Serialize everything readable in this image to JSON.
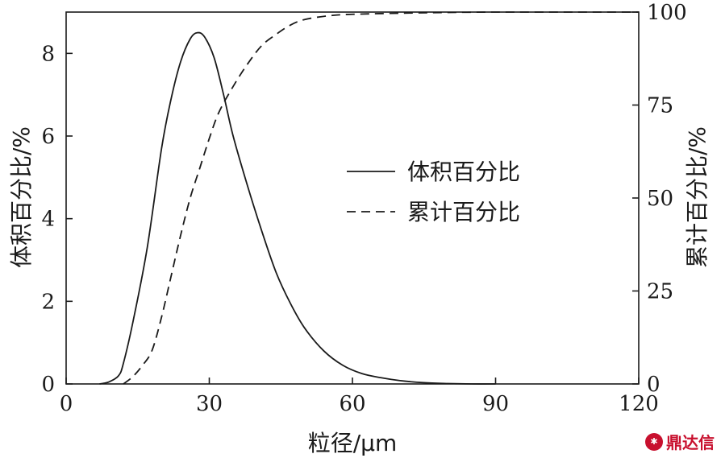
{
  "chart_data": {
    "type": "line",
    "title": "",
    "xlabel": "粒径/μm",
    "ylabel_left": "体积百分比/%",
    "ylabel_right": "累计百分比/%",
    "xlim": [
      0,
      120
    ],
    "ylim_left": [
      0,
      9
    ],
    "ylim_right": [
      0,
      100
    ],
    "x_ticks": [
      0,
      30,
      60,
      90,
      120
    ],
    "y_left_ticks": [
      0,
      2,
      4,
      6,
      8
    ],
    "y_right_ticks": [
      0,
      25,
      50,
      75,
      100
    ],
    "grid": false,
    "legend_position": "center-right",
    "series": [
      {
        "name": "体积百分比",
        "axis": "left",
        "style": "solid",
        "x": [
          7,
          9,
          11,
          12,
          14,
          17,
          20,
          22,
          24,
          26,
          27.5,
          29,
          31,
          33,
          35,
          38,
          41,
          44,
          47,
          50,
          54,
          58,
          62,
          66,
          70,
          75,
          80,
          85,
          90
        ],
        "y": [
          0,
          0.05,
          0.2,
          0.5,
          1.5,
          3.3,
          5.7,
          6.9,
          7.8,
          8.35,
          8.5,
          8.4,
          7.9,
          7.0,
          6.0,
          4.8,
          3.7,
          2.7,
          1.95,
          1.35,
          0.8,
          0.45,
          0.25,
          0.15,
          0.08,
          0.03,
          0.01,
          0,
          0
        ]
      },
      {
        "name": "累计百分比",
        "axis": "right",
        "style": "dashed",
        "x": [
          12,
          14,
          16,
          18,
          20,
          22,
          24,
          26,
          28,
          30,
          32,
          35,
          38,
          41,
          44,
          47,
          50,
          55,
          60,
          70,
          80,
          90,
          100,
          110,
          120
        ],
        "y": [
          0,
          2,
          5,
          9,
          18,
          29,
          40,
          50,
          58,
          66,
          73,
          80,
          86,
          91,
          94,
          96.5,
          98,
          99,
          99.4,
          99.7,
          99.9,
          100,
          100,
          100,
          100
        ]
      }
    ]
  }
}
